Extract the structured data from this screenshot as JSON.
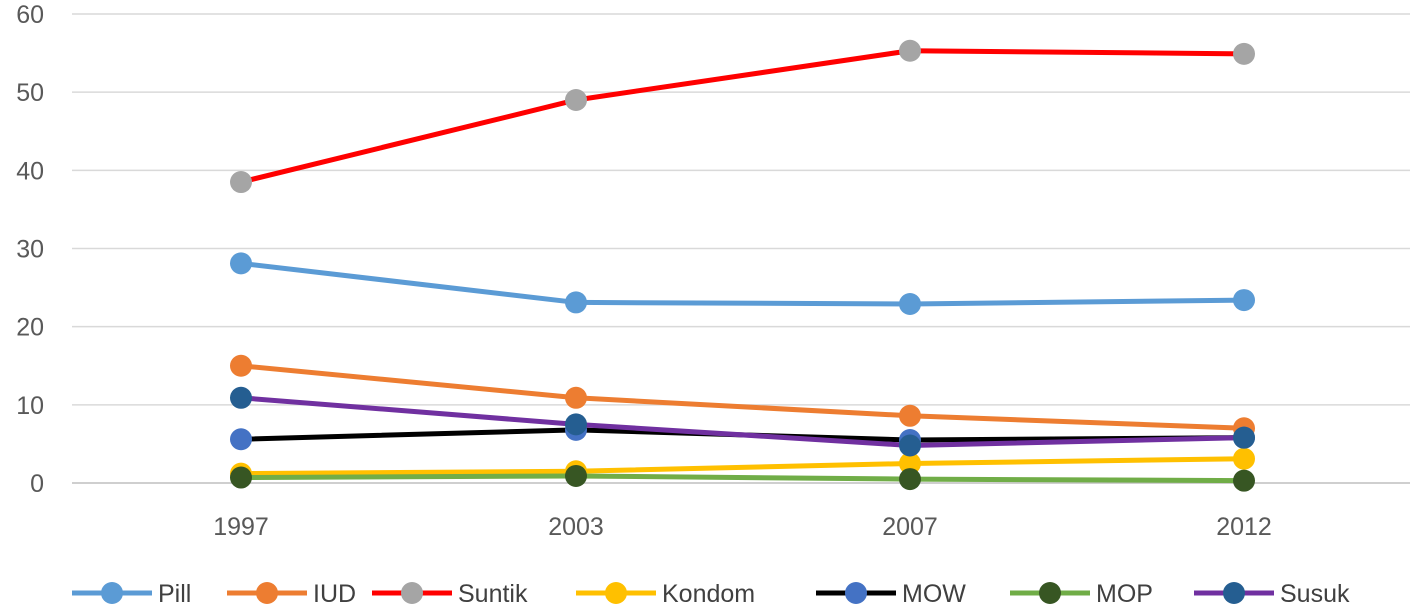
{
  "chart_data": {
    "type": "line",
    "title": "",
    "xlabel": "",
    "ylabel": "",
    "categories": [
      "1997",
      "2003",
      "2007",
      "2012"
    ],
    "ylim": [
      0,
      60
    ],
    "yticks": [
      "0",
      "10",
      "20",
      "30",
      "40",
      "50",
      "60"
    ],
    "grid": true,
    "legend_position": "bottom",
    "series": [
      {
        "name": "Pill",
        "values": [
          28.1,
          23.1,
          22.9,
          23.4
        ],
        "line_color": "#5B9BD5",
        "marker_color": "#5B9BD5"
      },
      {
        "name": "IUD",
        "values": [
          15.0,
          10.9,
          8.6,
          7.0
        ],
        "line_color": "#ED7D31",
        "marker_color": "#ED7D31"
      },
      {
        "name": "Suntik",
        "values": [
          38.5,
          49.0,
          55.3,
          54.9
        ],
        "line_color": "#FF0000",
        "marker_color": "#A5A5A5"
      },
      {
        "name": "Kondom",
        "values": [
          1.2,
          1.5,
          2.5,
          3.1
        ],
        "line_color": "#FFC000",
        "marker_color": "#FFC000"
      },
      {
        "name": "MOW",
        "values": [
          5.6,
          6.8,
          5.5,
          5.8
        ],
        "line_color": "#000000",
        "marker_color": "#4472C4"
      },
      {
        "name": "MOP",
        "values": [
          0.7,
          0.9,
          0.5,
          0.3
        ],
        "line_color": "#70AD47",
        "marker_color": "#375623"
      },
      {
        "name": "Susuk",
        "values": [
          10.9,
          7.5,
          4.8,
          5.8
        ],
        "line_color": "#7030A0",
        "marker_color": "#255E91"
      }
    ]
  }
}
